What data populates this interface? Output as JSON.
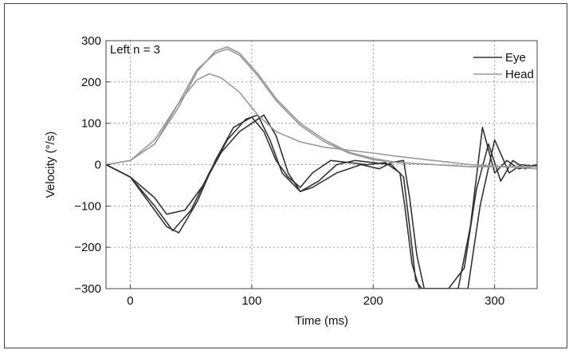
{
  "chart_data": {
    "type": "line",
    "title": "",
    "annotation": "Left n = 3",
    "xlabel": "Time (ms)",
    "ylabel": "Velocity (°/s)",
    "xlim": [
      -20,
      335
    ],
    "ylim": [
      -300,
      300
    ],
    "xticks": [
      0,
      100,
      200,
      300
    ],
    "yticks": [
      -300,
      -200,
      -100,
      0,
      100,
      200,
      300
    ],
    "xtick_labels": [
      "0",
      "100",
      "200",
      "300"
    ],
    "ytick_labels": [
      "−300",
      "−200",
      "−100",
      "0",
      "100",
      "200",
      "300"
    ],
    "grid": true,
    "legend": {
      "position": "top-right",
      "entries": [
        "Eye",
        "Head"
      ]
    },
    "colors": {
      "Eye": "#333333",
      "Head": "#9a9a9a"
    },
    "series": [
      {
        "name": "Eye",
        "group": "Eye",
        "x": [
          -20,
          0,
          20,
          35,
          50,
          65,
          80,
          95,
          105,
          115,
          125,
          140,
          155,
          170,
          185,
          200,
          215,
          225,
          230,
          235,
          240,
          250,
          260,
          270,
          280,
          290,
          300,
          310,
          320,
          335
        ],
        "y": [
          0,
          -30,
          -100,
          -160,
          -110,
          -20,
          60,
          110,
          120,
          60,
          -20,
          -65,
          -40,
          0,
          10,
          5,
          0,
          -30,
          -150,
          -280,
          -300,
          -300,
          -300,
          -300,
          -150,
          90,
          -20,
          10,
          -10,
          0
        ]
      },
      {
        "name": "Eye",
        "group": "Eye",
        "x": [
          -20,
          0,
          20,
          30,
          40,
          55,
          70,
          85,
          100,
          110,
          120,
          130,
          140,
          150,
          165,
          180,
          195,
          210,
          222,
          226,
          232,
          238,
          250,
          262,
          275,
          285,
          295,
          305,
          315,
          325,
          335
        ],
        "y": [
          0,
          -30,
          -110,
          -150,
          -165,
          -90,
          10,
          90,
          115,
          80,
          10,
          -30,
          -55,
          -20,
          10,
          5,
          0,
          5,
          -20,
          -100,
          -240,
          -300,
          -300,
          -300,
          -250,
          -60,
          50,
          -40,
          10,
          -10,
          0
        ]
      },
      {
        "name": "Eye",
        "group": "Eye",
        "x": [
          -20,
          0,
          20,
          30,
          45,
          60,
          75,
          90,
          100,
          110,
          120,
          130,
          140,
          150,
          170,
          190,
          205,
          215,
          225,
          230,
          236,
          242,
          252,
          265,
          278,
          288,
          300,
          312,
          322,
          335
        ],
        "y": [
          0,
          -30,
          -80,
          -120,
          -110,
          -50,
          30,
          80,
          100,
          120,
          70,
          -20,
          -65,
          -55,
          -20,
          0,
          -10,
          5,
          10,
          -80,
          -220,
          -300,
          -300,
          -300,
          -300,
          -100,
          60,
          -20,
          0,
          -5
        ]
      },
      {
        "name": "Head",
        "group": "Head",
        "x": [
          -20,
          0,
          20,
          40,
          55,
          70,
          80,
          90,
          105,
          120,
          140,
          160,
          180,
          200,
          220,
          250,
          280,
          310,
          335
        ],
        "y": [
          0,
          10,
          50,
          140,
          225,
          275,
          285,
          270,
          220,
          160,
          100,
          60,
          30,
          15,
          5,
          0,
          -5,
          -5,
          -5
        ]
      },
      {
        "name": "Head",
        "group": "Head",
        "x": [
          -20,
          0,
          20,
          40,
          55,
          70,
          80,
          90,
          105,
          120,
          140,
          160,
          180,
          200,
          220,
          250,
          280,
          310,
          335
        ],
        "y": [
          0,
          10,
          50,
          150,
          230,
          270,
          280,
          265,
          215,
          155,
          95,
          55,
          28,
          12,
          5,
          0,
          -5,
          -5,
          -5
        ]
      },
      {
        "name": "Head",
        "group": "Head",
        "x": [
          -20,
          0,
          20,
          40,
          55,
          65,
          75,
          90,
          105,
          120,
          140,
          160,
          180,
          200,
          220,
          250,
          280,
          310,
          335
        ],
        "y": [
          0,
          10,
          60,
          150,
          205,
          220,
          210,
          175,
          120,
          80,
          55,
          42,
          35,
          28,
          20,
          10,
          0,
          -5,
          -10
        ]
      }
    ]
  }
}
